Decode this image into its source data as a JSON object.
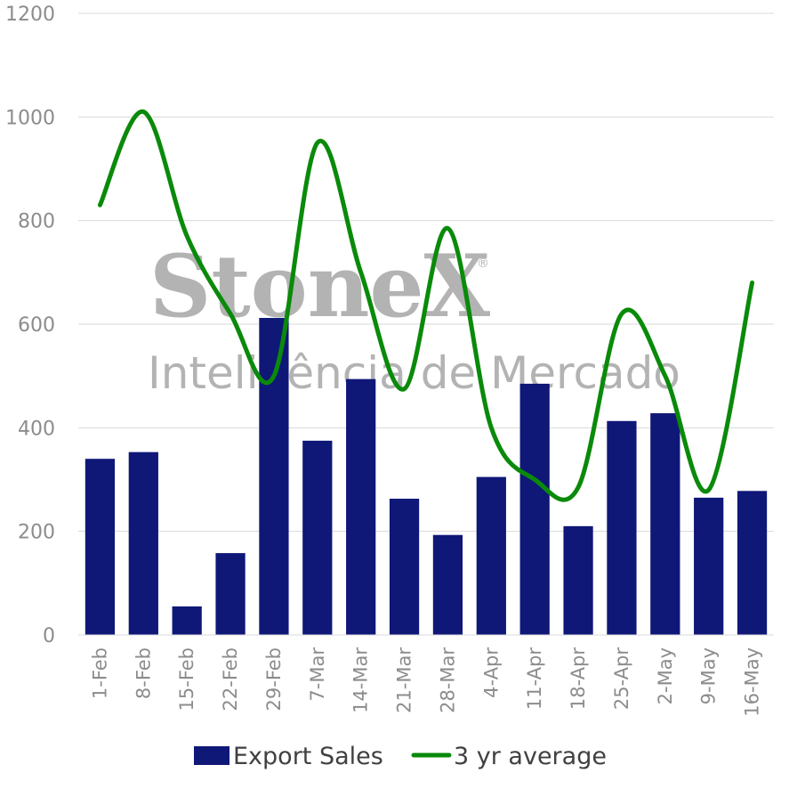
{
  "chart_data": {
    "type": "bar",
    "categories": [
      "1-Feb",
      "8-Feb",
      "15-Feb",
      "22-Feb",
      "29-Feb",
      "7-Mar",
      "14-Mar",
      "21-Mar",
      "28-Mar",
      "4-Apr",
      "11-Apr",
      "18-Apr",
      "25-Apr",
      "2-May",
      "9-May",
      "16-May"
    ],
    "series": [
      {
        "name": "Export Sales",
        "type": "bar",
        "color": "#0f1777",
        "values": [
          340,
          353,
          55,
          158,
          612,
          375,
          494,
          263,
          193,
          305,
          485,
          210,
          413,
          428,
          265,
          278
        ]
      },
      {
        "name": "3 yr average",
        "type": "line",
        "smooth": true,
        "color": "#0a8a0a",
        "values": [
          830,
          1010,
          770,
          620,
          500,
          950,
          700,
          475,
          785,
          400,
          300,
          285,
          620,
          500,
          280,
          680
        ]
      }
    ],
    "ylim": [
      0,
      1200
    ],
    "yticks": [
      "0",
      "200",
      "400",
      "600",
      "800",
      "1000",
      "1200"
    ],
    "grid": true,
    "legend_position": "bottom",
    "title": "",
    "xlabel": "",
    "ylabel": ""
  },
  "watermark": {
    "brand": "StoneX",
    "registered": "®",
    "subtitle": "Inteligência de Mercado"
  }
}
